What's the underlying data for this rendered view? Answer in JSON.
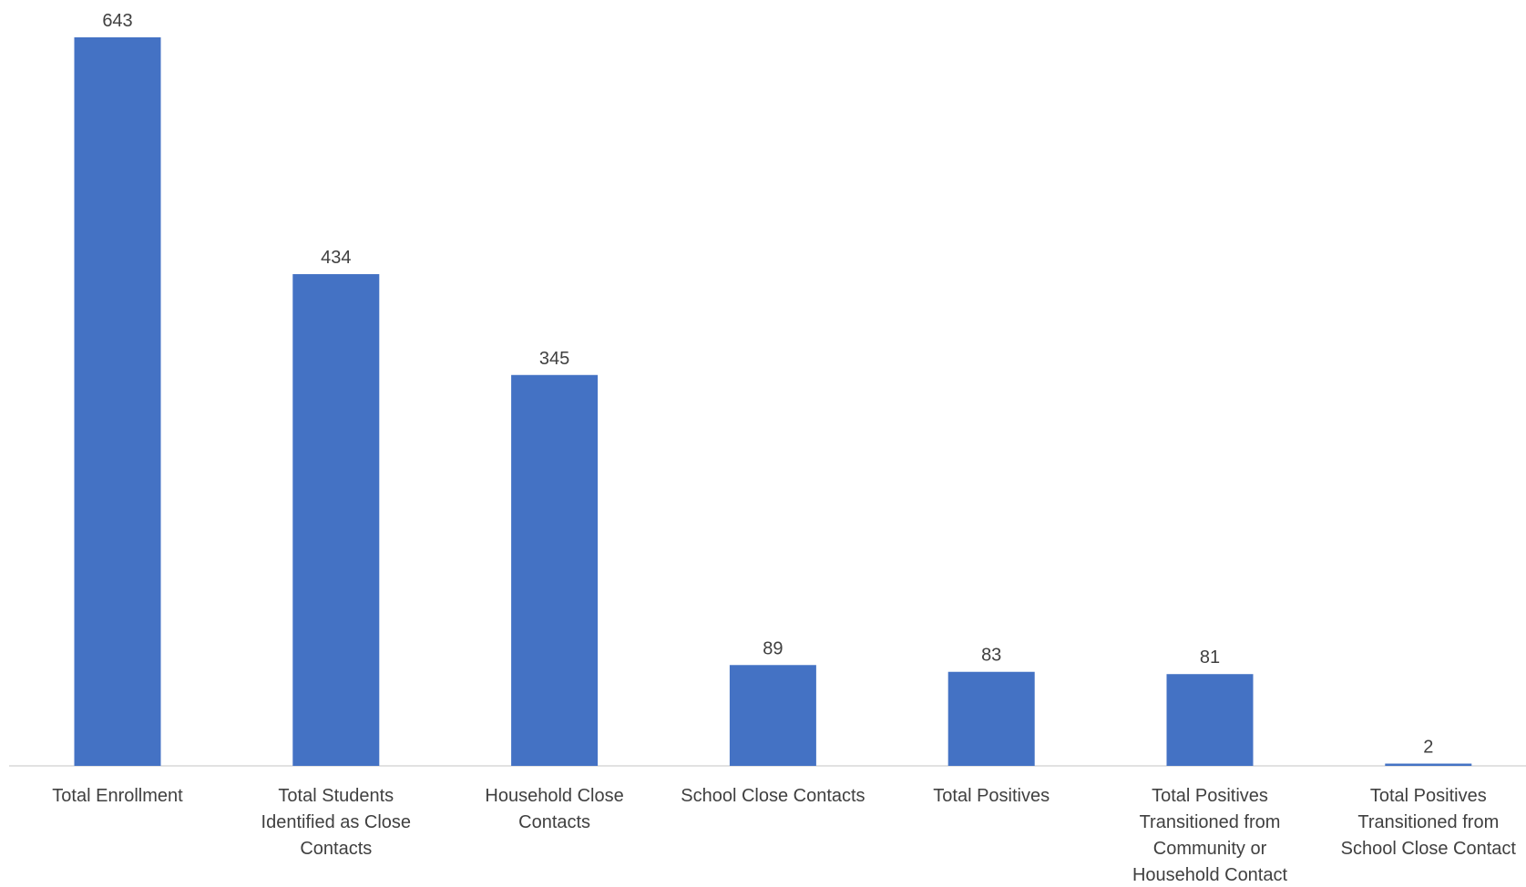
{
  "chart_data": {
    "type": "bar",
    "title": "",
    "xlabel": "",
    "ylabel": "",
    "ylim": [
      0,
      643
    ],
    "grid": false,
    "legend": "none",
    "bar_color": "#4472C4",
    "axis_color": "#D9D9D9",
    "text_color": "#404040",
    "categories": [
      [
        "Total Enrollment"
      ],
      [
        "Total Students",
        "Identified as Close",
        "Contacts"
      ],
      [
        "Household Close",
        "Contacts"
      ],
      [
        "School Close Contacts"
      ],
      [
        "Total Positives"
      ],
      [
        "Total Positives",
        "Transitioned from",
        "Community or",
        "Household Contact"
      ],
      [
        "Total Positives",
        "Transitioned from",
        "School Close Contact"
      ]
    ],
    "values": [
      643,
      434,
      345,
      89,
      83,
      81,
      2
    ]
  }
}
